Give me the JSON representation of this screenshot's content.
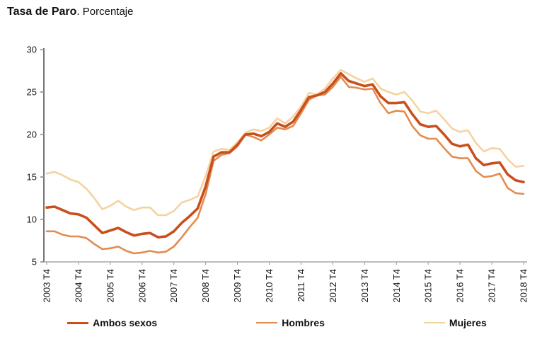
{
  "header": {
    "title_bold": "Tasa de Paro",
    "title_rest": ". Porcentaje"
  },
  "colors": {
    "y_axis": "#3a3a3a",
    "x_axis": "#a6a6a6",
    "tick_text": "#1a1a1a"
  },
  "chart_data": {
    "type": "line",
    "title": "Tasa de Paro. Porcentaje",
    "xlabel": "",
    "ylabel": "",
    "x_unit": "quarter",
    "x_first_quarter": "2003 T4",
    "x_last_quarter": "2018 T4",
    "ylim": [
      5,
      30
    ],
    "y_ticks": [
      5,
      10,
      15,
      20,
      25,
      30
    ],
    "grid": false,
    "legend_position": "bottom",
    "x_tick_positions": [
      0,
      4,
      8,
      12,
      16,
      20,
      24,
      28,
      32,
      36,
      40,
      44,
      48,
      52,
      56,
      60
    ],
    "x_tick_labels": [
      "2003 T4",
      "2004 T4",
      "2005 T4",
      "2006 T4",
      "2007 T4",
      "2008 T4",
      "2009 T4",
      "2010 T4",
      "2011 T4",
      "2012 T4",
      "2013 T4",
      "2014 T4",
      "2015 T4",
      "2016 T4",
      "2017 T4",
      "2018 T4"
    ],
    "series": [
      {
        "name": "Ambos sexos",
        "color": "#c94f1d",
        "width": 3.6,
        "values": [
          11.4,
          11.5,
          11.1,
          10.7,
          10.6,
          10.2,
          9.3,
          8.4,
          8.7,
          9.0,
          8.5,
          8.1,
          8.3,
          8.4,
          7.9,
          8.0,
          8.6,
          9.6,
          10.4,
          11.3,
          13.9,
          17.4,
          17.9,
          17.9,
          18.8,
          20.0,
          20.1,
          19.8,
          20.3,
          21.3,
          20.9,
          21.5,
          22.9,
          24.4,
          24.6,
          25.0,
          26.0,
          27.2,
          26.3,
          26.0,
          25.7,
          25.9,
          24.5,
          23.7,
          23.7,
          23.8,
          22.4,
          21.2,
          20.9,
          21.0,
          20.0,
          18.9,
          18.6,
          18.8,
          17.2,
          16.4,
          16.6,
          16.7,
          15.3,
          14.6,
          14.4
        ]
      },
      {
        "name": "Hombres",
        "color": "#e38b50",
        "width": 2.6,
        "values": [
          8.6,
          8.6,
          8.2,
          8.0,
          8.0,
          7.8,
          7.1,
          6.5,
          6.6,
          6.8,
          6.3,
          6.0,
          6.1,
          6.3,
          6.1,
          6.2,
          6.8,
          7.9,
          9.1,
          10.2,
          13.0,
          16.9,
          17.6,
          17.8,
          18.6,
          20.0,
          19.7,
          19.3,
          20.0,
          20.8,
          20.6,
          21.0,
          22.5,
          24.1,
          24.6,
          24.7,
          25.6,
          26.8,
          25.6,
          25.5,
          25.3,
          25.4,
          23.7,
          22.5,
          22.8,
          22.7,
          21.0,
          19.9,
          19.5,
          19.5,
          18.4,
          17.4,
          17.2,
          17.2,
          15.7,
          15.0,
          15.1,
          15.4,
          13.7,
          13.1,
          13.0
        ]
      },
      {
        "name": "Mujeres",
        "color": "#f5d3a0",
        "width": 2.6,
        "values": [
          15.4,
          15.6,
          15.2,
          14.7,
          14.4,
          13.6,
          12.5,
          11.2,
          11.6,
          12.2,
          11.5,
          11.1,
          11.4,
          11.4,
          10.5,
          10.5,
          11.0,
          12.0,
          12.3,
          12.7,
          15.1,
          18.0,
          18.3,
          18.2,
          19.1,
          20.2,
          20.6,
          20.4,
          20.8,
          21.9,
          21.3,
          22.1,
          23.3,
          24.9,
          24.7,
          25.4,
          26.6,
          27.6,
          27.1,
          26.6,
          26.2,
          26.6,
          25.4,
          25.0,
          24.7,
          25.0,
          24.0,
          22.7,
          22.5,
          22.8,
          21.8,
          20.7,
          20.3,
          20.5,
          19.0,
          18.0,
          18.4,
          18.3,
          17.1,
          16.2,
          16.3
        ]
      }
    ]
  }
}
